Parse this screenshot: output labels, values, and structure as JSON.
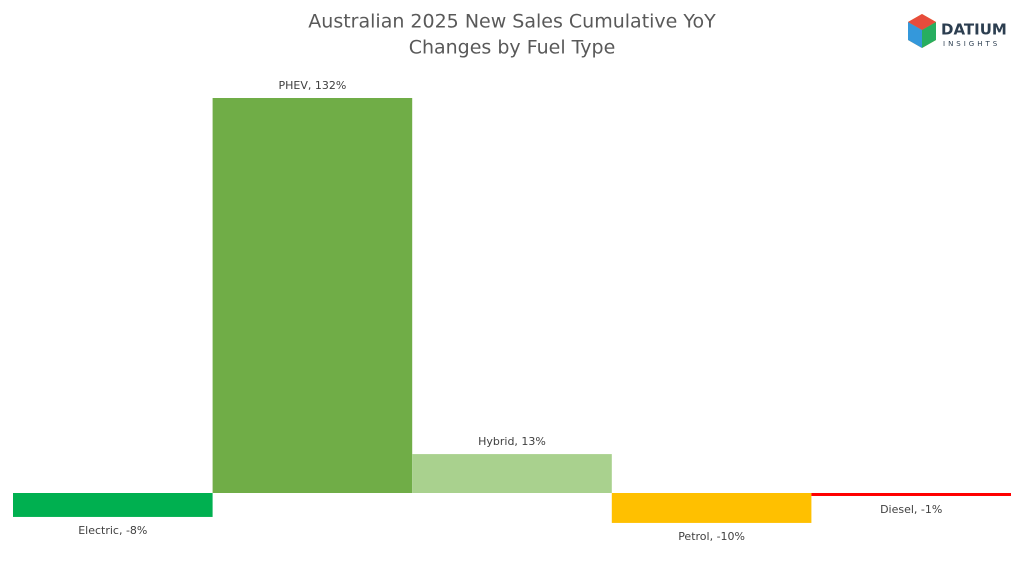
{
  "chart_data": {
    "type": "bar",
    "title": [
      "Australian 2025 New Sales Cumulative YoY",
      "Changes by Fuel Type"
    ],
    "values": [
      -8,
      132,
      13,
      -10,
      -1
    ],
    "value_labels": [
      "Electric, -8%",
      "PHEV, 132%",
      "Hybrid, 13%",
      "Petrol, -10%",
      "Diesel, -1%"
    ],
    "colors": [
      "#00b050",
      "#70ad47",
      "#a9d18e",
      "#ffc000",
      "#ff0000"
    ]
  },
  "logo": {
    "name": "DATIUM",
    "tagline": "INSIGHTS"
  }
}
